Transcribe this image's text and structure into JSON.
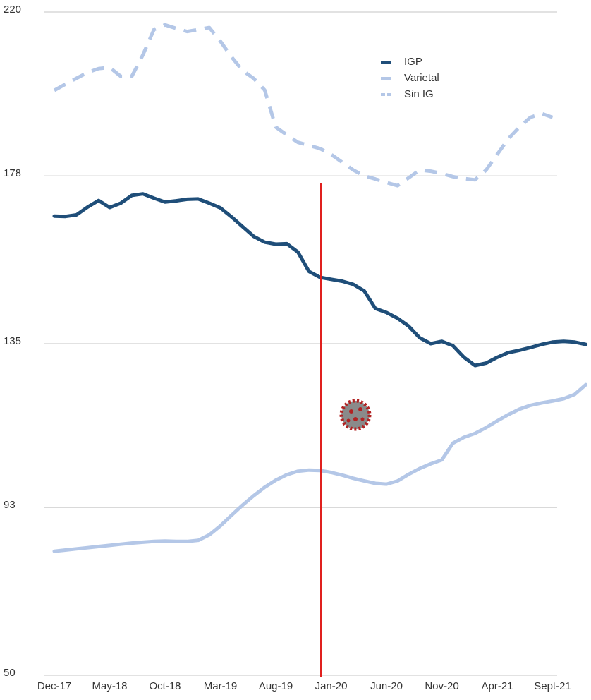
{
  "chart_data": {
    "type": "line",
    "categories": [
      "Dec-17",
      null,
      null,
      null,
      null,
      "May-18",
      null,
      null,
      null,
      null,
      "Oct-18",
      null,
      null,
      null,
      null,
      "Mar-19",
      null,
      null,
      null,
      null,
      "Aug-19",
      null,
      null,
      null,
      null,
      "Jan-20",
      null,
      null,
      null,
      null,
      "Jun-20",
      null,
      null,
      null,
      null,
      "Nov-20",
      null,
      null,
      null,
      null,
      "Apr-21",
      null,
      null,
      null,
      null,
      "Sept-21",
      null,
      null,
      null
    ],
    "series": [
      {
        "name": "IGP",
        "color": "#1f4e79",
        "style": "solid",
        "values": [
          167.7,
          167.6,
          168.0,
          170.0,
          171.7,
          169.9,
          171.0,
          173.0,
          173.4,
          172.3,
          171.3,
          171.6,
          172.0,
          172.1,
          171.0,
          169.8,
          167.5,
          165.0,
          162.5,
          161.0,
          160.5,
          160.6,
          158.5,
          153.5,
          152.0,
          151.5,
          151.0,
          150.2,
          148.5,
          144.0,
          143.0,
          141.5,
          139.5,
          136.5,
          135.0,
          135.6,
          134.5,
          131.5,
          129.4,
          130.0,
          131.5,
          132.7,
          133.3,
          134.0,
          134.8,
          135.4,
          135.6,
          135.4,
          134.8
        ]
      },
      {
        "name": "Varietal",
        "color": "#b4c7e7",
        "style": "solid",
        "values": [
          81.8,
          82.1,
          82.4,
          82.7,
          83.0,
          83.3,
          83.6,
          83.9,
          84.1,
          84.3,
          84.4,
          84.3,
          84.3,
          84.6,
          86.0,
          88.3,
          91.0,
          93.6,
          96.0,
          98.2,
          100.0,
          101.4,
          102.3,
          102.6,
          102.5,
          102.0,
          101.3,
          100.5,
          99.8,
          99.2,
          99.0,
          99.8,
          101.5,
          103.0,
          104.2,
          105.2,
          109.5,
          111.0,
          112.0,
          113.5,
          115.2,
          116.8,
          118.2,
          119.2,
          119.8,
          120.3,
          120.9,
          122.0,
          124.5
        ]
      },
      {
        "name": "Sin IG",
        "color": "#b4c7e7",
        "style": "dashed",
        "values": [
          199.9,
          201.5,
          203.0,
          204.5,
          205.5,
          205.8,
          203.5,
          203.5,
          209.0,
          215.5,
          216.7,
          215.8,
          215.0,
          215.5,
          216.0,
          212.5,
          208.5,
          205.0,
          203.0,
          200.0,
          190.5,
          188.5,
          186.6,
          185.8,
          185.0,
          183.5,
          181.5,
          179.5,
          178.0,
          177.2,
          176.3,
          175.5,
          177.5,
          179.5,
          179.2,
          178.6,
          177.8,
          177.3,
          177.0,
          179.5,
          183.5,
          187.5,
          190.5,
          193.0,
          194.0,
          193.0,
          null,
          null,
          null
        ]
      }
    ],
    "ylim": [
      50,
      220
    ],
    "yticks": [
      50,
      93,
      135,
      178,
      220
    ],
    "grid": true,
    "legend": "top-right"
  }
}
